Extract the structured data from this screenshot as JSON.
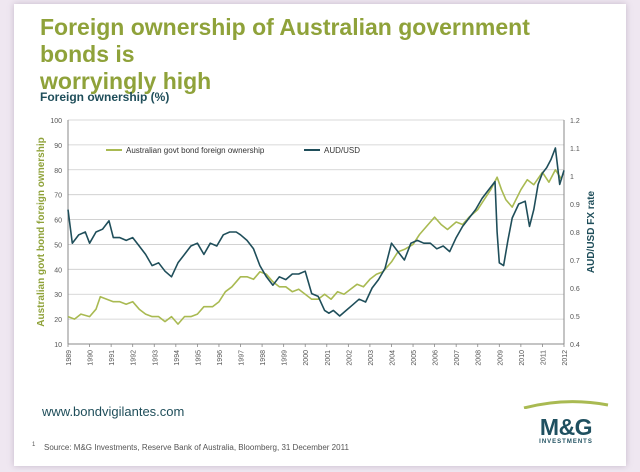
{
  "header": {
    "title_line1": "Foreign ownership of Australian government bonds is",
    "title_line2": "worryingly high",
    "subhead": "Foreign ownership (%)"
  },
  "footer": {
    "website": "www.bondvigilantes.com",
    "logo_main": "M&G",
    "logo_sub": "INVESTMENTS",
    "footnote_number": "1",
    "footnote": "Source: M&G Investments, Reserve Bank of Australia, Bloomberg, 31 December 2011"
  },
  "colors": {
    "ownership": "#a9ba52",
    "audusd": "#1f4e5a",
    "title": "#8fa23a",
    "grid": "#cccccc"
  },
  "chart_data": {
    "type": "line",
    "xlabel": "",
    "ylabel": "Australian govt bond foreign ownership",
    "y2label": "AUD/USD FX rate",
    "xlim": [
      1989,
      2012
    ],
    "ylim": [
      10,
      100
    ],
    "y2lim": [
      0.4,
      1.2
    ],
    "x_ticks": [
      "1989",
      "1990",
      "1991",
      "1992",
      "1993",
      "1994",
      "1995",
      "1996",
      "1997",
      "1998",
      "1999",
      "2000",
      "2001",
      "2002",
      "2003",
      "2004",
      "2005",
      "2006",
      "2007",
      "2008",
      "2009",
      "2010",
      "2011",
      "2012"
    ],
    "y_ticks": [
      "10",
      "20",
      "30",
      "40",
      "50",
      "60",
      "70",
      "80",
      "90",
      "100"
    ],
    "y2_ticks": [
      "0.4",
      "0.5",
      "0.6",
      "0.7",
      "0.8",
      "0.9",
      "1",
      "1.1",
      "1.2"
    ],
    "grid": "horizontal",
    "legend_position": "top-left",
    "series": [
      {
        "name": "Australian govt bond foreign ownership",
        "axis": "left",
        "x": [
          1989.0,
          1989.3,
          1989.6,
          1990.0,
          1990.3,
          1990.5,
          1990.8,
          1991.1,
          1991.4,
          1991.7,
          1992.0,
          1992.3,
          1992.6,
          1992.9,
          1993.2,
          1993.5,
          1993.8,
          1994.1,
          1994.4,
          1994.7,
          1995.0,
          1995.3,
          1995.7,
          1996.0,
          1996.3,
          1996.6,
          1997.0,
          1997.3,
          1997.6,
          1997.9,
          1998.2,
          1998.5,
          1998.8,
          1999.1,
          1999.4,
          1999.7,
          2000.0,
          2000.3,
          2000.6,
          2000.9,
          2001.2,
          2001.5,
          2001.8,
          2002.1,
          2002.4,
          2002.7,
          2003.0,
          2003.3,
          2003.6,
          2004.0,
          2004.3,
          2004.6,
          2005.0,
          2005.3,
          2005.6,
          2006.0,
          2006.3,
          2006.6,
          2007.0,
          2007.3,
          2007.6,
          2008.0,
          2008.3,
          2008.6,
          2008.9,
          2009.1,
          2009.3,
          2009.6,
          2010.0,
          2010.3,
          2010.6,
          2011.0,
          2011.3,
          2011.6,
          2011.9
        ],
        "y": [
          21,
          20,
          22,
          21,
          24,
          29,
          28,
          27,
          27,
          26,
          27,
          24,
          22,
          21,
          21,
          19,
          21,
          18,
          21,
          21,
          22,
          25,
          25,
          27,
          31,
          33,
          37,
          37,
          36,
          39,
          38,
          35,
          33,
          33,
          31,
          32,
          30,
          28,
          28,
          30,
          28,
          31,
          30,
          32,
          34,
          33,
          36,
          38,
          39,
          43,
          47,
          48,
          50,
          54,
          57,
          61,
          58,
          56,
          59,
          58,
          61,
          64,
          68,
          72,
          77,
          72,
          68,
          65,
          72,
          76,
          74,
          79,
          75,
          80,
          76
        ]
      },
      {
        "name": "AUD/USD",
        "axis": "right",
        "x": [
          1989.0,
          1989.2,
          1989.5,
          1989.8,
          1990.0,
          1990.3,
          1990.6,
          1990.9,
          1991.1,
          1991.4,
          1991.7,
          1992.0,
          1992.3,
          1992.6,
          1992.9,
          1993.2,
          1993.5,
          1993.8,
          1994.1,
          1994.4,
          1994.7,
          1995.0,
          1995.3,
          1995.6,
          1995.9,
          1996.2,
          1996.5,
          1996.8,
          1997.0,
          1997.3,
          1997.6,
          1997.9,
          1998.2,
          1998.5,
          1998.8,
          1999.1,
          1999.4,
          1999.7,
          2000.0,
          2000.3,
          2000.6,
          2000.9,
          2001.1,
          2001.3,
          2001.6,
          2001.9,
          2002.2,
          2002.5,
          2002.8,
          2003.1,
          2003.4,
          2003.7,
          2004.0,
          2004.3,
          2004.6,
          2004.9,
          2005.2,
          2005.5,
          2005.8,
          2006.1,
          2006.4,
          2006.7,
          2007.0,
          2007.3,
          2007.6,
          2007.9,
          2008.2,
          2008.5,
          2008.8,
          2008.9,
          2009.0,
          2009.2,
          2009.4,
          2009.6,
          2009.9,
          2010.2,
          2010.4,
          2010.6,
          2010.8,
          2011.0,
          2011.2,
          2011.4,
          2011.6,
          2011.8,
          2012.0
        ],
        "y": [
          0.88,
          0.76,
          0.79,
          0.8,
          0.76,
          0.8,
          0.81,
          0.84,
          0.78,
          0.78,
          0.77,
          0.78,
          0.75,
          0.72,
          0.68,
          0.69,
          0.66,
          0.64,
          0.69,
          0.72,
          0.75,
          0.76,
          0.72,
          0.76,
          0.75,
          0.79,
          0.8,
          0.8,
          0.79,
          0.77,
          0.74,
          0.68,
          0.64,
          0.61,
          0.64,
          0.63,
          0.65,
          0.65,
          0.66,
          0.58,
          0.57,
          0.52,
          0.51,
          0.52,
          0.5,
          0.52,
          0.54,
          0.56,
          0.55,
          0.6,
          0.63,
          0.67,
          0.76,
          0.73,
          0.7,
          0.76,
          0.77,
          0.76,
          0.76,
          0.74,
          0.75,
          0.73,
          0.78,
          0.82,
          0.85,
          0.88,
          0.92,
          0.95,
          0.98,
          0.8,
          0.69,
          0.68,
          0.77,
          0.85,
          0.9,
          0.91,
          0.82,
          0.88,
          0.97,
          1.01,
          1.03,
          1.06,
          1.1,
          0.97,
          1.02
        ]
      }
    ]
  }
}
